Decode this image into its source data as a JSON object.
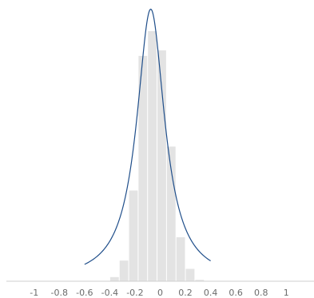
{
  "chart_data": {
    "type": "bar",
    "title": "",
    "xlabel": "",
    "ylabel": "",
    "xlim": [
      -1.22,
      1.22
    ],
    "ylim": [
      0,
      1
    ],
    "grid": false,
    "legend": "none",
    "x_ticks": [
      {
        "value": -1,
        "label": "-1"
      },
      {
        "value": -0.8,
        "label": "-0.8"
      },
      {
        "value": -0.6,
        "label": "-0.6"
      },
      {
        "value": -0.4,
        "label": "-0.4"
      },
      {
        "value": -0.2,
        "label": "-0.2"
      },
      {
        "value": 0,
        "label": "0"
      },
      {
        "value": 0.2,
        "label": "0.2"
      },
      {
        "value": 0.4,
        "label": "0.4"
      },
      {
        "value": 0.6,
        "label": "0.6"
      },
      {
        "value": 0.8,
        "label": "0.8"
      },
      {
        "value": 1,
        "label": "1"
      }
    ],
    "histogram": {
      "bin_width": 0.075,
      "bin_left_edges": [
        -0.4,
        -0.325,
        -0.25,
        -0.175,
        -0.1,
        -0.025,
        0.05,
        0.125,
        0.2,
        0.275
      ],
      "heights": [
        0.015,
        0.075,
        0.33,
        0.82,
        0.91,
        0.84,
        0.49,
        0.16,
        0.045,
        0.005
      ],
      "color": "#e3e3e3"
    },
    "density_curve": {
      "center": -0.075,
      "scale": 0.135,
      "peak": 0.99,
      "x_range": [
        -0.6,
        0.4
      ],
      "color": "#1f4e8a"
    },
    "axis_color": "#cfcfcf"
  }
}
